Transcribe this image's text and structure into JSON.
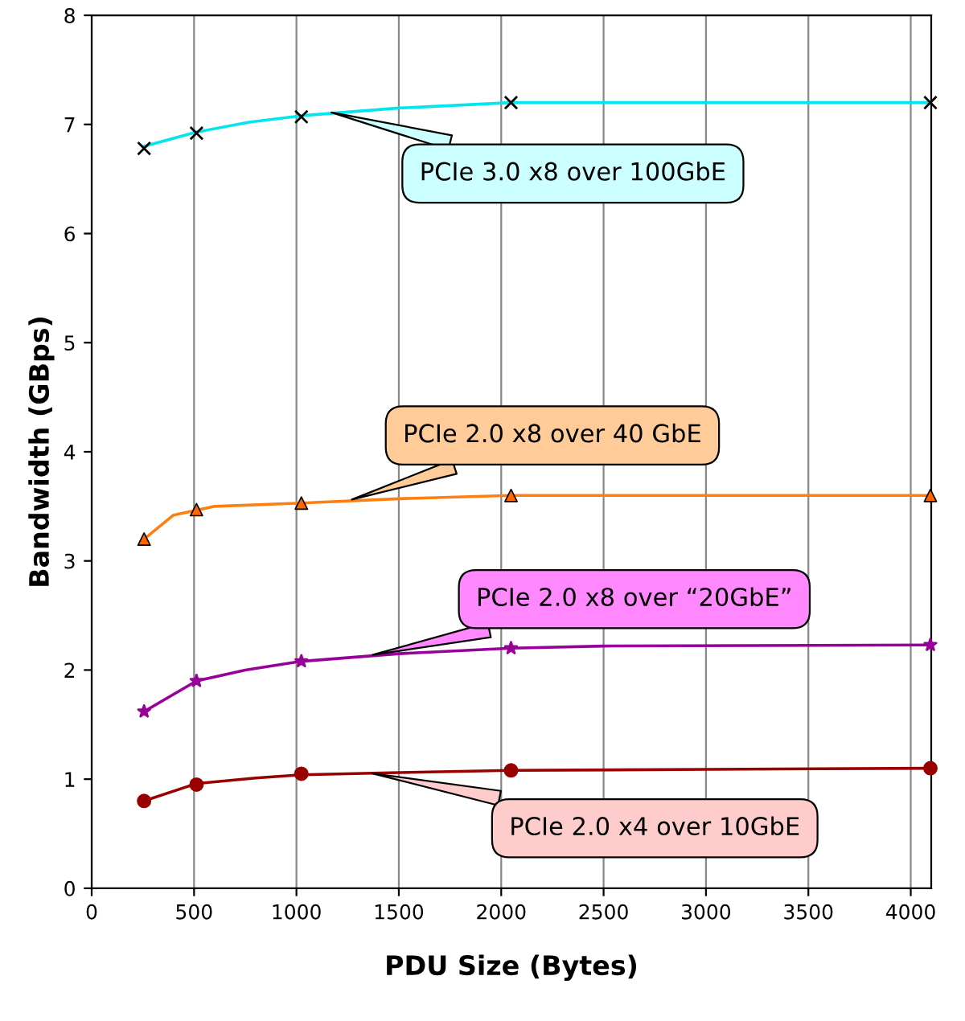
{
  "chart_data": {
    "type": "line",
    "xlabel": "PDU Size (Bytes)",
    "ylabel": "Bandwidth (GBps)",
    "xlim": [
      0,
      4100
    ],
    "xticks": [
      0,
      500,
      1000,
      1500,
      2000,
      2500,
      3000,
      3500,
      4000
    ],
    "ylim": [
      0,
      8
    ],
    "yticks": [
      0,
      1,
      2,
      3,
      4,
      5,
      6,
      7,
      8
    ],
    "grid": "x",
    "legend": false,
    "line_style": "solid",
    "series": [
      {
        "color": "#00e5ee",
        "marker": "none",
        "x": [
          256,
          512,
          768,
          1024,
          1500,
          2048,
          3000,
          4096
        ],
        "values": [
          6.8,
          6.93,
          7.02,
          7.08,
          7.15,
          7.2,
          7.2,
          7.2
        ]
      },
      {
        "type": "scatter",
        "color": "#000000",
        "marker": "cross",
        "x": [
          256,
          512,
          1024,
          2048,
          4096
        ],
        "values": [
          6.78,
          6.92,
          7.07,
          7.2,
          7.2
        ]
      },
      {
        "color": "#ff7f0e",
        "marker": "none",
        "x": [
          256,
          400,
          600,
          1024,
          1500,
          2048,
          3000,
          4096
        ],
        "values": [
          3.2,
          3.42,
          3.5,
          3.53,
          3.57,
          3.6,
          3.6,
          3.6
        ]
      },
      {
        "type": "scatter",
        "color": "#ff6600",
        "marker": "triangle",
        "x": [
          256,
          512,
          1024,
          2048,
          4096
        ],
        "values": [
          3.2,
          3.47,
          3.53,
          3.6,
          3.6
        ]
      },
      {
        "color": "#990099",
        "marker": "none",
        "x": [
          256,
          512,
          750,
          1024,
          1500,
          2048,
          2500,
          4096
        ],
        "values": [
          1.62,
          1.9,
          2.0,
          2.08,
          2.15,
          2.2,
          2.22,
          2.23
        ]
      },
      {
        "type": "scatter",
        "color": "#990099",
        "marker": "star",
        "x": [
          256,
          512,
          1024,
          2048,
          4096
        ],
        "values": [
          1.62,
          1.9,
          2.08,
          2.2,
          2.23
        ]
      },
      {
        "color": "#990000",
        "marker": "none",
        "x": [
          256,
          512,
          800,
          1024,
          1500,
          2048,
          3000,
          4096
        ],
        "values": [
          0.8,
          0.96,
          1.01,
          1.04,
          1.06,
          1.08,
          1.09,
          1.1
        ]
      },
      {
        "type": "scatter",
        "color": "#990000",
        "marker": "circle",
        "x": [
          256,
          512,
          1024,
          2048,
          4096
        ],
        "values": [
          0.8,
          0.95,
          1.05,
          1.08,
          1.1
        ]
      }
    ],
    "annotations": [
      {
        "text": "PCIe 3.0 x8 over 100GbE",
        "x": 1150,
        "y": 7.12
      },
      {
        "text": "PCIe 2.0 x8 over 40 GbE",
        "x": 1250,
        "y": 3.55
      },
      {
        "text": "PCIe 2.0 x8 over “20GbE”",
        "x": 1350,
        "y": 2.13
      },
      {
        "text": "PCIe 2.0 x4 over 10GbE",
        "x": 1350,
        "y": 1.06
      }
    ]
  }
}
